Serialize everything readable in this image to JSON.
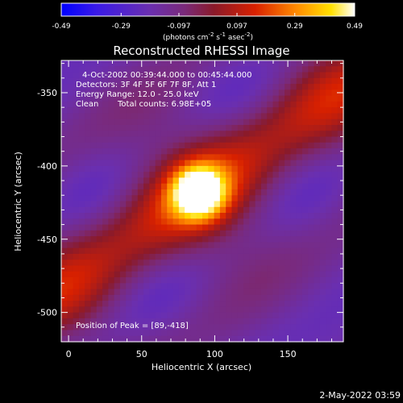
{
  "chart_data": {
    "type": "heatmap",
    "title": "Reconstructed RHESSI Image",
    "xlabel": "Heliocentric X (arcsec)",
    "ylabel": "Heliocentric Y (arcsec)",
    "xlim": [
      -5,
      188
    ],
    "ylim": [
      -520,
      -328
    ],
    "x_ticks": [
      "0",
      "50",
      "100",
      "150"
    ],
    "x_tick_values": [
      0,
      50,
      100,
      150
    ],
    "y_ticks": [
      "-350",
      "-400",
      "-450",
      "-500"
    ],
    "y_tick_values": [
      -350,
      -400,
      -450,
      -500
    ],
    "colorbar": {
      "min": -0.49,
      "max": 0.49,
      "tick_labels": [
        "-0.49",
        "-0.29",
        "-0.097",
        "0.097",
        "0.29",
        "0.49"
      ],
      "tick_values": [
        -0.49,
        -0.29,
        -0.097,
        0.097,
        0.29,
        0.49
      ],
      "units_prefix": "(photons cm",
      "units_mid1": " s",
      "units_mid2": " asec",
      "units_suffix": ")",
      "units_exp1": "-2",
      "units_exp2": "-1",
      "units_exp3": "-2"
    },
    "annotations": {
      "time_range": "4-Oct-2002 00:39:44.000 to 00:45:44.000",
      "detectors": "Detectors: 3F 4F 5F 6F 7F 8F, Att 1",
      "energy_range": "Energy Range: 12.0 - 25.0 keV",
      "clean_label": "Clean",
      "total_counts": "Total counts: 6.98E+05",
      "peak_position": "Position of Peak = [89,-418]"
    },
    "peak": {
      "x": 89,
      "y": -418
    }
  },
  "footer": {
    "timestamp": "2-May-2022 03:59"
  },
  "colors": {
    "background": "#000000",
    "text": "#ffffff",
    "colormap": [
      "#0000ff",
      "#5a2ab0",
      "#6e2f8e",
      "#8a1f3a",
      "#d11a08",
      "#ff8c00",
      "#ffd200",
      "#ffffff"
    ]
  }
}
